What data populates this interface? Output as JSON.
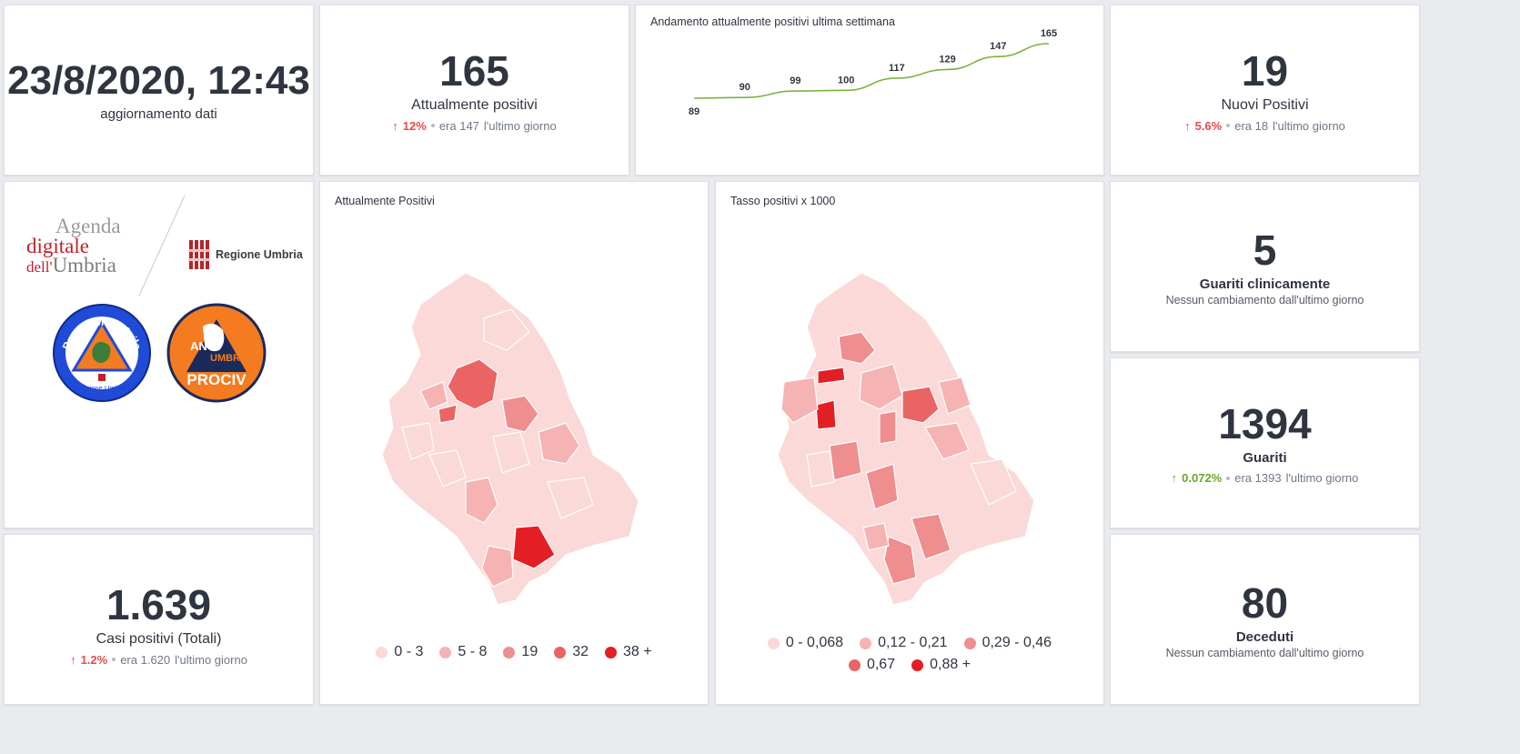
{
  "update": {
    "datetime": "23/8/2020, 12:43",
    "label": "aggiornamento dati"
  },
  "positives": {
    "value": "165",
    "label": "Attualmente positivi",
    "arrow": "↑",
    "pct": "12%",
    "was": "era 147",
    "suffix": "l'ultimo giorno"
  },
  "trend": {
    "title": "Andamento attualmente positivi ultima settimana"
  },
  "new_positives": {
    "value": "19",
    "label": "Nuovi Positivi",
    "arrow": "↑",
    "pct": "5.6%",
    "was": "era 18",
    "suffix": "l'ultimo giorno"
  },
  "logos": {
    "agenda_line1": "Agenda",
    "agenda_line2": "digitale",
    "agenda_line3a": "dell'",
    "agenda_line3b": "Umbria",
    "regione": "Regione Umbria",
    "protezione_civile": "Protezione Civile",
    "protezione_sub": "Regione Umbria",
    "anci_1": "ANCI",
    "anci_2": "UMBRIA",
    "anci_3": "PROCIV"
  },
  "total_cases": {
    "value": "1.639",
    "label": "Casi positivi (Totali)",
    "arrow": "↑",
    "pct": "1.2%",
    "was": "era 1.620",
    "suffix": "l'ultimo giorno"
  },
  "map_positives": {
    "title": "Attualmente Positivi",
    "legend": [
      {
        "label": "0 - 3",
        "color": "#fbd9d9"
      },
      {
        "label": "5 - 8",
        "color": "#f6b3b3"
      },
      {
        "label": "19",
        "color": "#ef8e8e"
      },
      {
        "label": "32",
        "color": "#ea6464"
      },
      {
        "label": "38 +",
        "color": "#e31e24"
      }
    ]
  },
  "map_rate": {
    "title": "Tasso positivi x 1000",
    "legend": [
      {
        "label": "0 - 0,068",
        "color": "#fbd9d9"
      },
      {
        "label": "0,12 - 0,21",
        "color": "#f6b3b3"
      },
      {
        "label": "0,29 - 0,46",
        "color": "#ef8e8e"
      },
      {
        "label": "0,67",
        "color": "#ea6464"
      },
      {
        "label": "0,88 +",
        "color": "#e31e24"
      }
    ]
  },
  "clinically_recovered": {
    "value": "5",
    "label": "Guariti clinicamente",
    "note": "Nessun cambiamento dall'ultimo giorno"
  },
  "recovered": {
    "value": "1394",
    "label": "Guariti",
    "arrow": "↑",
    "pct": "0.072%",
    "was": "era 1393",
    "suffix": "l'ultimo giorno"
  },
  "deceased": {
    "value": "80",
    "label": "Deceduti",
    "note": "Nessun cambiamento dall'ultimo giorno"
  },
  "chart_data": {
    "type": "line",
    "title": "Andamento attualmente positivi ultima settimana",
    "x": [
      "1",
      "2",
      "3",
      "4",
      "5",
      "6",
      "7",
      "8"
    ],
    "values": [
      89,
      90,
      99,
      100,
      117,
      129,
      147,
      165
    ],
    "ylim": [
      85,
      170
    ],
    "xlabel": "",
    "ylabel": "",
    "color": "#7cb342",
    "grid": false
  }
}
